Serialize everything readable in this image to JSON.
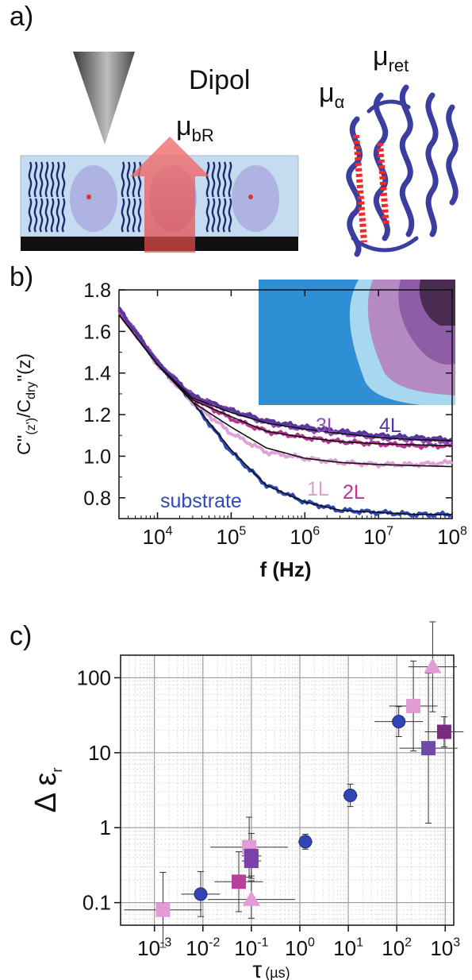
{
  "panels": {
    "a": "a)",
    "b": "b)",
    "c": "c)"
  },
  "panel_a": {
    "dipole_label": "Dipol",
    "mu_bR": {
      "main": "μ",
      "sub": "bR"
    },
    "mu_alpha": {
      "main": "μ",
      "sub": "α"
    },
    "mu_ret": {
      "main": "μ",
      "sub": "ret"
    },
    "colors": {
      "substrate_film": "#c5dcf0",
      "base": "#111111",
      "arrow": "#e85a5a",
      "protein": "#3a3f9f",
      "helix_marker": "#ee2b2b"
    }
  },
  "chart_data": [
    {
      "id": "b",
      "type": "line",
      "ylabel_parts": [
        "C''",
        "(z')",
        "/C",
        "dry",
        "''(z)"
      ],
      "xlabel": "f (Hz)",
      "xscale": "log",
      "xlim": [
        3000,
        100000000
      ],
      "ylim": [
        0.7,
        1.8
      ],
      "x_ticks": [
        {
          "base": "10",
          "exp": "4"
        },
        {
          "base": "10",
          "exp": "5"
        },
        {
          "base": "10",
          "exp": "6"
        },
        {
          "base": "10",
          "exp": "7"
        },
        {
          "base": "10",
          "exp": "8"
        }
      ],
      "y_ticks": [
        "0.8",
        "1.0",
        "1.2",
        "1.4",
        "1.6",
        "1.8"
      ],
      "series": [
        {
          "name": "substrate",
          "color": "#2f49b8",
          "x": [
            3000,
            10000,
            30000,
            100000,
            300000,
            1000000,
            3000000,
            10000000,
            30000000,
            100000000
          ],
          "y": [
            1.7,
            1.45,
            1.26,
            1.02,
            0.86,
            0.78,
            0.74,
            0.73,
            0.72,
            0.72
          ]
        },
        {
          "name": "1L",
          "color": "#e0a0d8",
          "x": [
            3000,
            10000,
            30000,
            100000,
            300000,
            1000000,
            3000000,
            10000000,
            30000000,
            100000000
          ],
          "y": [
            1.7,
            1.44,
            1.26,
            1.11,
            1.02,
            0.99,
            0.97,
            0.96,
            0.96,
            0.97
          ]
        },
        {
          "name": "2L",
          "color": "#b8368f",
          "x": [
            3000,
            10000,
            30000,
            100000,
            300000,
            1000000,
            3000000,
            10000000,
            30000000,
            100000000
          ],
          "y": [
            1.7,
            1.45,
            1.28,
            1.18,
            1.12,
            1.09,
            1.07,
            1.06,
            1.05,
            1.05
          ]
        },
        {
          "name": "3L",
          "color": "#8e4db8",
          "x": [
            3000,
            10000,
            30000,
            100000,
            300000,
            1000000,
            3000000,
            10000000,
            30000000,
            100000000
          ],
          "y": [
            1.71,
            1.45,
            1.29,
            1.22,
            1.16,
            1.13,
            1.11,
            1.09,
            1.08,
            1.07
          ]
        },
        {
          "name": "4L",
          "color": "#5a36a0",
          "x": [
            3000,
            10000,
            30000,
            100000,
            300000,
            1000000,
            3000000,
            10000000,
            30000000,
            100000000
          ],
          "y": [
            1.71,
            1.45,
            1.29,
            1.22,
            1.17,
            1.14,
            1.12,
            1.1,
            1.09,
            1.08
          ]
        }
      ],
      "fits": [
        {
          "x": [
            3000,
            10000,
            30000,
            100000,
            300000,
            1000000,
            3000000,
            10000000,
            30000000,
            100000000
          ],
          "y": [
            1.68,
            1.44,
            1.26,
            1.03,
            0.86,
            0.78,
            0.74,
            0.73,
            0.72,
            0.72
          ]
        },
        {
          "x": [
            3000,
            10000,
            30000,
            100000,
            300000,
            1000000,
            3000000,
            10000000,
            30000000,
            100000000
          ],
          "y": [
            1.68,
            1.44,
            1.26,
            1.14,
            1.04,
            0.99,
            0.97,
            0.96,
            0.955,
            0.95
          ]
        },
        {
          "x": [
            3000,
            10000,
            30000,
            100000,
            300000,
            1000000,
            3000000,
            10000000,
            30000000,
            100000000
          ],
          "y": [
            1.68,
            1.44,
            1.27,
            1.19,
            1.12,
            1.09,
            1.07,
            1.06,
            1.055,
            1.05
          ]
        },
        {
          "x": [
            3000,
            10000,
            30000,
            100000,
            300000,
            1000000,
            3000000,
            10000000,
            30000000,
            100000000
          ],
          "y": [
            1.68,
            1.44,
            1.28,
            1.21,
            1.16,
            1.13,
            1.11,
            1.09,
            1.08,
            1.075
          ]
        }
      ],
      "annotations": [
        "substrate",
        "1L",
        "2L",
        "3L",
        "4L"
      ]
    },
    {
      "id": "c",
      "type": "scatter",
      "xscale": "log",
      "yscale": "log",
      "xlim": [
        0.0002,
        1500
      ],
      "ylim": [
        0.05,
        200
      ],
      "xlabel_main": "τ",
      "xlabel_unit": "(µs)",
      "ylabel": "Δ ε",
      "ylabel_sub": "r",
      "x_ticks": [
        {
          "base": "10",
          "exp": "-3"
        },
        {
          "base": "10",
          "exp": "-2"
        },
        {
          "base": "10",
          "exp": "-1"
        },
        {
          "base": "10",
          "exp": "0"
        },
        {
          "base": "10",
          "exp": "1"
        },
        {
          "base": "10",
          "exp": "2"
        },
        {
          "base": "10",
          "exp": "3"
        }
      ],
      "y_ticks": [
        "0.1",
        "1",
        "10",
        "100"
      ],
      "grid": true,
      "points": [
        {
          "x": 0.009,
          "y": 0.13,
          "marker": "circle",
          "color": "#3345b5"
        },
        {
          "x": 1.3,
          "y": 0.65,
          "marker": "circle",
          "color": "#3345b5"
        },
        {
          "x": 11,
          "y": 2.7,
          "marker": "circle",
          "color": "#3345b5"
        },
        {
          "x": 110,
          "y": 26,
          "marker": "circle",
          "color": "#3345b5"
        },
        {
          "x": 0.0015,
          "y": 0.08,
          "marker": "square",
          "color": "#e39bd6"
        },
        {
          "x": 0.09,
          "y": 0.55,
          "marker": "square",
          "color": "#e39bd6"
        },
        {
          "x": 220,
          "y": 42,
          "marker": "square",
          "color": "#e39bd6"
        },
        {
          "x": 0.055,
          "y": 0.19,
          "marker": "square",
          "color": "#b83f9c"
        },
        {
          "x": 0.1,
          "y": 0.42,
          "marker": "square",
          "color": "#7d3fa8"
        },
        {
          "x": 0.1,
          "y": 0.36,
          "marker": "square",
          "color": "#7d3fa8"
        },
        {
          "x": 450,
          "y": 11.5,
          "marker": "square",
          "color": "#6f4aa8"
        },
        {
          "x": 950,
          "y": 19,
          "marker": "square",
          "color": "#7a2a7e"
        },
        {
          "x": 0.1,
          "y": 0.11,
          "marker": "triangle",
          "color": "#e39bd6"
        },
        {
          "x": 550,
          "y": 140,
          "marker": "triangle",
          "color": "#e39bd6"
        }
      ]
    }
  ]
}
